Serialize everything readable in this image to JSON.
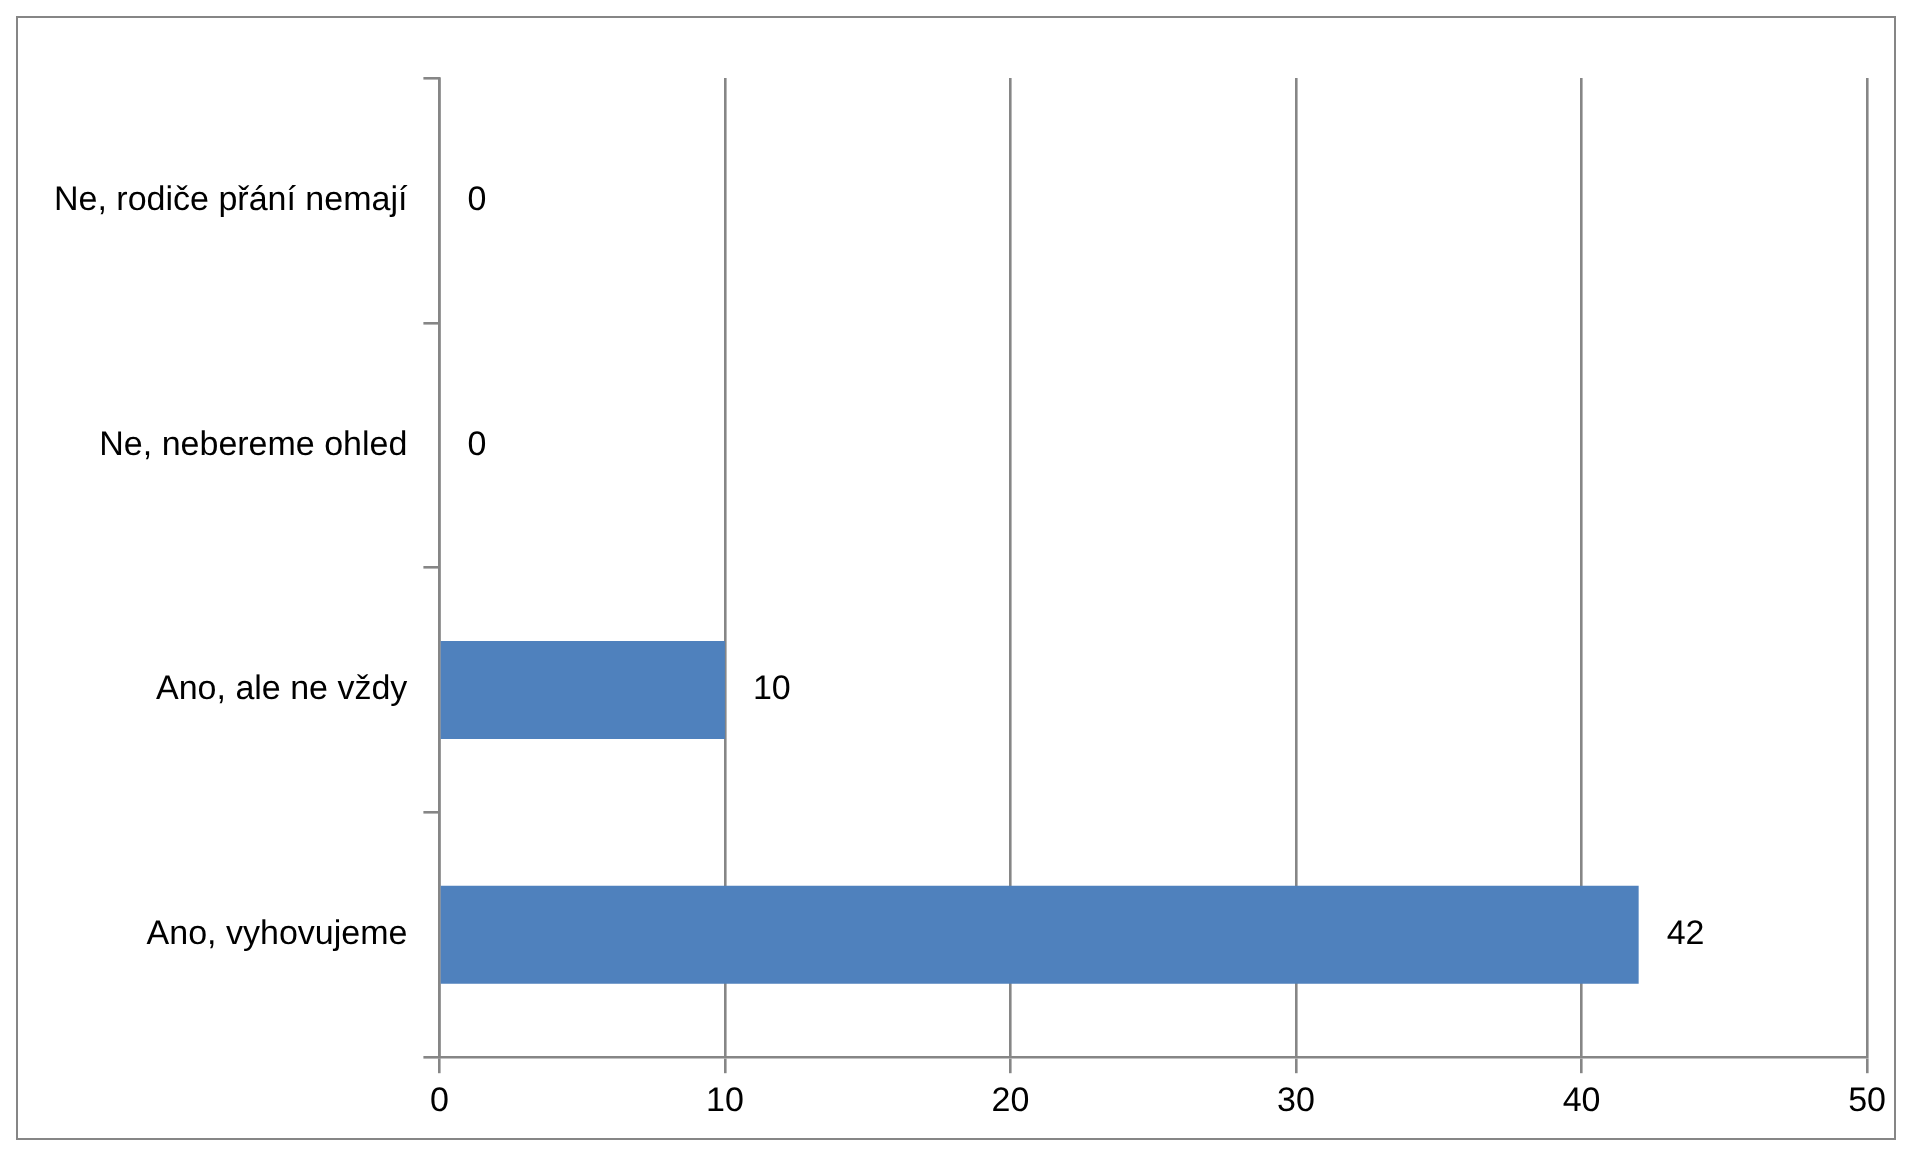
{
  "chart_data": {
    "type": "bar",
    "orientation": "horizontal",
    "categories": [
      "Ne, rodiče přání nemají",
      "Ne, nebereme ohled",
      "Ano, ale ne vždy",
      "Ano, vyhovujeme"
    ],
    "values": [
      0,
      0,
      10,
      42
    ],
    "color": "#4f81bd",
    "xlim": [
      0,
      50
    ],
    "xticks": [
      0,
      10,
      20,
      30,
      40,
      50
    ],
    "grid": "x",
    "data_labels": true,
    "legend": false
  }
}
